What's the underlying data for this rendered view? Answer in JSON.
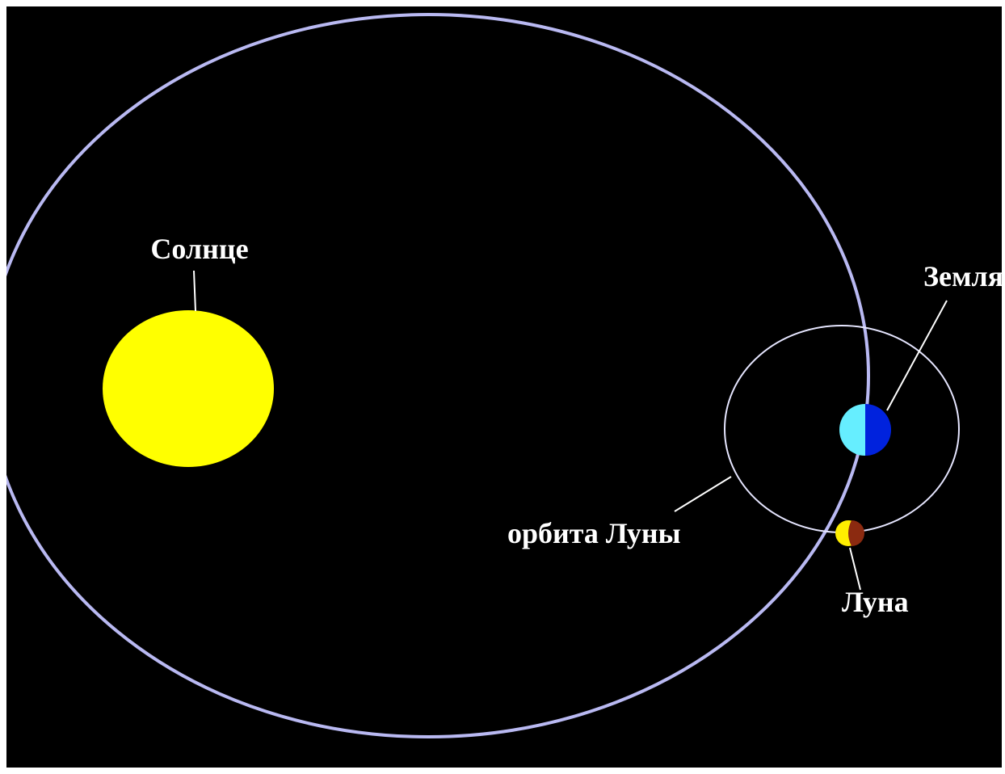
{
  "labels": {
    "sun": "Солнце",
    "earth": "Земля",
    "moon_orbit": "орбита Луны",
    "moon": "Луна"
  }
}
